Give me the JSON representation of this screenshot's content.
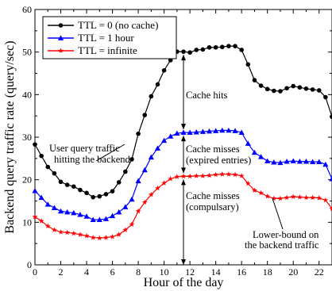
{
  "chart_data": {
    "type": "line",
    "xlabel": "Hour of the day",
    "ylabel": "Backend query traffic rate (query/sec)",
    "xlim": [
      0,
      23
    ],
    "ylim": [
      0,
      60
    ],
    "x_ticks": [
      0,
      2,
      4,
      6,
      8,
      10,
      12,
      14,
      16,
      18,
      20,
      22
    ],
    "y_ticks": [
      0,
      10,
      20,
      30,
      40,
      50,
      60
    ],
    "legend_position": "top-left",
    "x": [
      0,
      0.5,
      1,
      1.5,
      2,
      2.5,
      3,
      3.5,
      4,
      4.5,
      5,
      5.5,
      6,
      6.5,
      7,
      7.5,
      8,
      8.5,
      9,
      9.5,
      10,
      10.5,
      11,
      11.5,
      12,
      12.5,
      13,
      13.5,
      14,
      14.5,
      15,
      15.5,
      16,
      16.5,
      17,
      17.5,
      18,
      18.5,
      19,
      19.5,
      20,
      20.5,
      21,
      21.5,
      22,
      22.5,
      23
    ],
    "series": [
      {
        "name": "TTL = 0 (no cache)",
        "color": "#000000",
        "marker": "circle",
        "values": [
          28.3,
          25.6,
          23,
          21.5,
          19.5,
          18.8,
          18.4,
          17.6,
          16.9,
          15.9,
          16.1,
          16.6,
          17.3,
          19.4,
          21.9,
          24.8,
          30.8,
          35.2,
          39.6,
          42.4,
          45.7,
          48.1,
          50.1,
          50.1,
          49.9,
          50.5,
          50.6,
          51.1,
          51.1,
          51.2,
          51.4,
          51.4,
          50.5,
          47.1,
          43.4,
          42.1,
          41.3,
          40.9,
          40.8,
          41.5,
          42,
          41.7,
          41.4,
          41.2,
          41,
          39.4,
          34.8
        ]
      },
      {
        "name": "TTL = 1 hour",
        "color": "#0000ff",
        "marker": "triangle",
        "values": [
          17.4,
          15.8,
          14.2,
          13.4,
          12.6,
          12.4,
          12.2,
          11.8,
          11.4,
          10.6,
          10.6,
          10.8,
          11.5,
          12.4,
          13.6,
          15.4,
          19.7,
          22.3,
          25.3,
          27.4,
          29.2,
          30.2,
          30.9,
          31.1,
          31.1,
          31.2,
          31.3,
          31.4,
          31.5,
          31.6,
          31.6,
          31.5,
          31.1,
          28.5,
          26.4,
          25.4,
          24.4,
          24.1,
          24,
          24.3,
          24.4,
          24.3,
          24.3,
          24.2,
          24.2,
          23.6,
          20.2
        ]
      },
      {
        "name": "TTL = infinite",
        "color": "#ff0000",
        "marker": "star",
        "values": [
          11.3,
          10.3,
          9.1,
          8.2,
          7.7,
          7.6,
          7.4,
          7.1,
          6.8,
          6.4,
          6.3,
          6.4,
          6.6,
          7.1,
          8.2,
          9.5,
          12.6,
          14.7,
          16.5,
          18,
          19.2,
          20.2,
          20.7,
          20.8,
          20.8,
          20.9,
          20.9,
          21,
          21.2,
          21.3,
          21.3,
          21.2,
          20.9,
          19.1,
          17.5,
          16.9,
          16.1,
          15.6,
          15.6,
          15.8,
          16,
          15.9,
          15.8,
          15.8,
          15.7,
          15.2,
          13.2
        ]
      }
    ],
    "annotations": {
      "cache_hits": "Cache hits",
      "cache_misses_expired": [
        "Cache misses",
        "(expired entries)"
      ],
      "cache_misses_compulsory": [
        "Cache misses",
        "(compulsary)"
      ],
      "user_query_traffic": [
        "User query traffic",
        "hitting the backend"
      ],
      "lower_bound": [
        "Lower-bound on",
        "the backend traffic"
      ]
    }
  }
}
